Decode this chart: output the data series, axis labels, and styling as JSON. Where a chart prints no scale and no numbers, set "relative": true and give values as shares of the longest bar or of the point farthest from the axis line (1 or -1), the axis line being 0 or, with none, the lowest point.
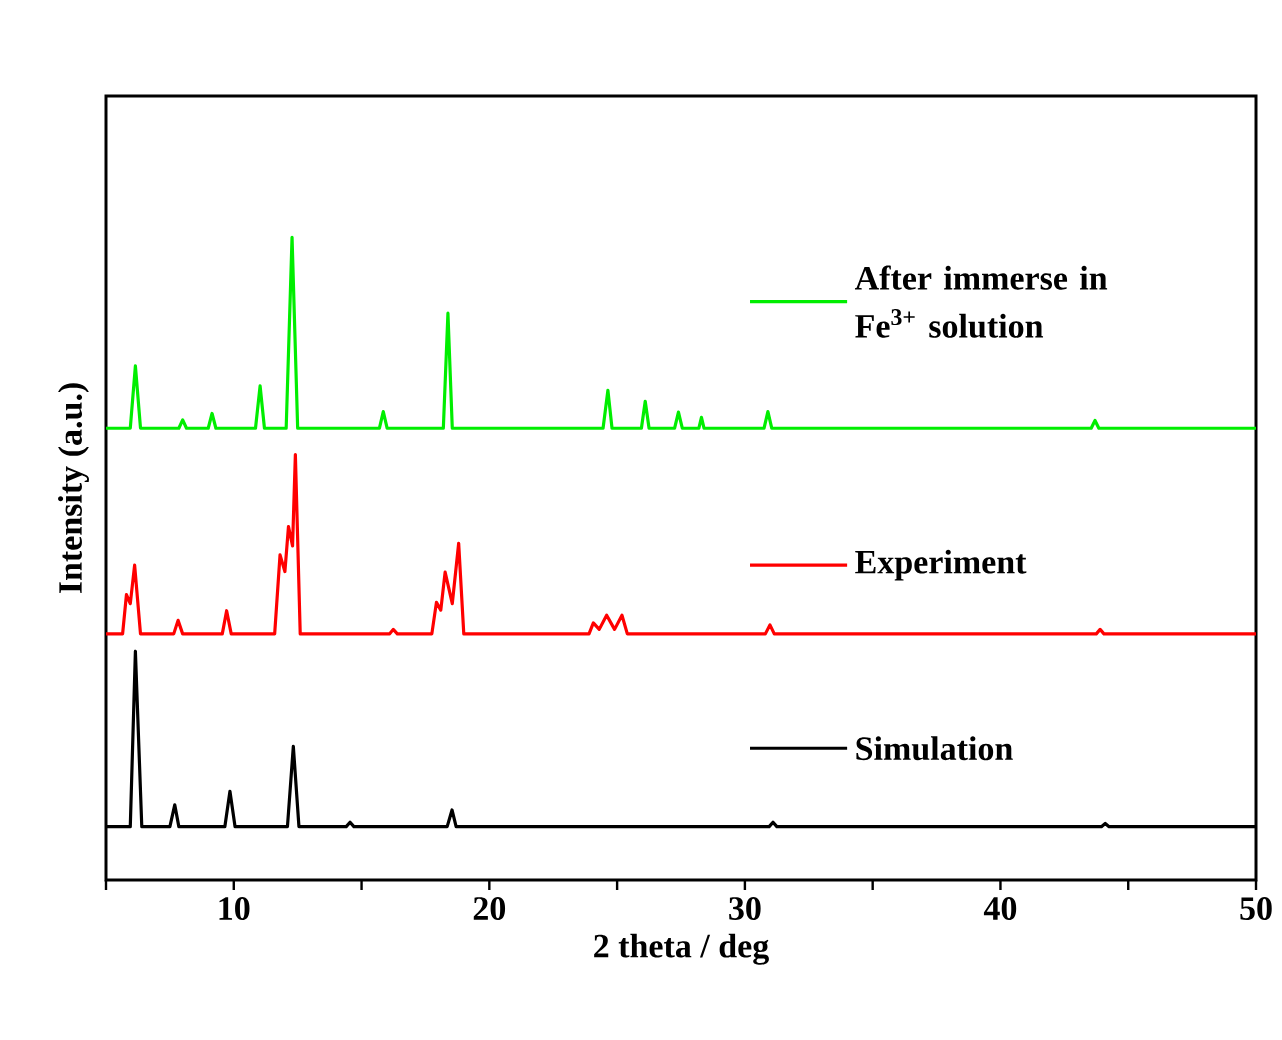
{
  "chart_data": {
    "type": "line",
    "relative": true,
    "legend": "right",
    "xlabel": "2 theta / deg",
    "ylabel": "Intensity (a.u.)",
    "xlim": [
      5,
      50
    ],
    "xticks": [
      {
        "value": 5,
        "label": null
      },
      10,
      {
        "value": 15,
        "label": null
      },
      20,
      {
        "value": 25,
        "label": null
      },
      30,
      {
        "value": 35,
        "label": null
      },
      40,
      {
        "value": 45,
        "label": null
      },
      50
    ],
    "series": [
      {
        "name": "After immerse in Fe$^{3+}$ solution",
        "color": "#00ee00",
        "x": [
          5,
          5.95,
          6.15,
          6.35,
          7.85,
          8.0,
          8.15,
          9.0,
          9.15,
          9.3,
          10.85,
          11.03,
          11.2,
          12.05,
          12.28,
          12.5,
          15.7,
          15.85,
          16.0,
          18.2,
          18.38,
          18.55,
          24.45,
          24.64,
          24.8,
          25.95,
          26.1,
          26.25,
          27.25,
          27.4,
          27.55,
          28.2,
          28.3,
          28.4,
          30.75,
          30.9,
          31.05,
          43.55,
          43.7,
          43.85,
          50
        ],
        "values": [
          0.703,
          0.703,
          0.8,
          0.703,
          0.703,
          0.716,
          0.703,
          0.703,
          0.726,
          0.703,
          0.703,
          0.769,
          0.703,
          0.703,
          1.0,
          0.703,
          0.703,
          0.729,
          0.703,
          0.703,
          0.882,
          0.703,
          0.703,
          0.762,
          0.703,
          0.703,
          0.745,
          0.703,
          0.703,
          0.728,
          0.703,
          0.703,
          0.72,
          0.703,
          0.703,
          0.729,
          0.703,
          0.703,
          0.715,
          0.703,
          0.703
        ]
      },
      {
        "name": "Experiment",
        "color": "#ff0000",
        "x": [
          5,
          5.65,
          5.8,
          5.95,
          6.12,
          6.35,
          7.65,
          7.82,
          8.0,
          9.55,
          9.72,
          9.9,
          11.6,
          11.81,
          12.0,
          12.14,
          12.3,
          12.41,
          12.6,
          16.1,
          16.24,
          16.4,
          17.75,
          17.93,
          18.1,
          18.27,
          18.55,
          18.8,
          19.0,
          23.9,
          24.07,
          24.3,
          24.59,
          24.9,
          25.19,
          25.4,
          30.8,
          30.98,
          31.15,
          43.75,
          43.9,
          44.05,
          50
        ],
        "values": [
          0.383,
          0.383,
          0.444,
          0.43,
          0.49,
          0.383,
          0.383,
          0.404,
          0.383,
          0.383,
          0.419,
          0.383,
          0.383,
          0.506,
          0.48,
          0.55,
          0.52,
          0.662,
          0.383,
          0.383,
          0.39,
          0.383,
          0.383,
          0.432,
          0.42,
          0.479,
          0.43,
          0.524,
          0.383,
          0.383,
          0.4,
          0.39,
          0.412,
          0.39,
          0.412,
          0.383,
          0.383,
          0.397,
          0.383,
          0.383,
          0.39,
          0.383,
          0.383
        ]
      },
      {
        "name": "Simulation",
        "color": "#000000",
        "x": [
          5,
          5.95,
          6.15,
          6.4,
          7.5,
          7.69,
          7.85,
          9.65,
          9.85,
          10.05,
          12.1,
          12.33,
          12.55,
          14.4,
          14.55,
          14.7,
          18.35,
          18.54,
          18.7,
          30.95,
          31.1,
          31.25,
          43.95,
          44.1,
          44.25,
          50
        ],
        "values": [
          0.083,
          0.083,
          0.356,
          0.083,
          0.083,
          0.117,
          0.083,
          0.083,
          0.138,
          0.083,
          0.083,
          0.208,
          0.083,
          0.083,
          0.09,
          0.083,
          0.083,
          0.109,
          0.083,
          0.083,
          0.09,
          0.083,
          0.083,
          0.088,
          0.083,
          0.083
        ]
      }
    ]
  }
}
